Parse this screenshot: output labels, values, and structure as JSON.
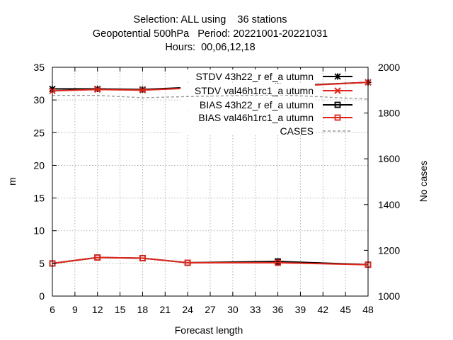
{
  "chart_data": {
    "type": "line",
    "title_lines": [
      "Selection: ALL using    36 stations",
      "Geopotential 500hPa   Period: 20221001-20221031",
      "Hours:  00,06,12,18"
    ],
    "xlabel": "Forecast length",
    "ylabel": "m",
    "y2label": "No cases",
    "xlim": [
      6,
      48
    ],
    "ylim": [
      0,
      35
    ],
    "y2lim": [
      1000,
      2000
    ],
    "xticks": [
      6,
      9,
      12,
      15,
      18,
      21,
      24,
      27,
      30,
      33,
      36,
      39,
      42,
      45,
      48
    ],
    "yticks": [
      0,
      5,
      10,
      15,
      20,
      25,
      30,
      35
    ],
    "y2ticks": [
      1000,
      1200,
      1400,
      1600,
      1800,
      2000
    ],
    "grid": true,
    "legend_position": "top-right",
    "x": [
      6,
      12,
      18,
      24,
      36,
      48
    ],
    "series": [
      {
        "name": "STDV 43h22_ref_autumn",
        "legend_text": "STDV 43h22_r ef_a utumn",
        "axis": "y",
        "color": "#000000",
        "marker": "asterisk",
        "values": [
          31.7,
          31.7,
          31.6,
          31.9,
          32.1,
          32.7
        ]
      },
      {
        "name": "STDV val46h1rc1_autumn",
        "legend_text": "STDV val46h1rc1_a utumn",
        "axis": "y",
        "color": "#e0261b",
        "marker": "x",
        "values": [
          31.4,
          31.6,
          31.5,
          31.8,
          32.0,
          32.7
        ]
      },
      {
        "name": "BIAS 43h22_ref_autumn",
        "legend_text": "BIAS 43h22_r ef_a utumn",
        "axis": "y",
        "color": "#000000",
        "marker": "square",
        "values": [
          5.0,
          5.9,
          5.8,
          5.1,
          5.3,
          4.8
        ]
      },
      {
        "name": "BIAS val46h1rc1_autumn",
        "legend_text": "BIAS val46h1rc1_a utumn",
        "axis": "y",
        "color": "#e0261b",
        "marker": "square",
        "values": [
          5.0,
          5.9,
          5.8,
          5.1,
          5.1,
          4.8
        ]
      },
      {
        "name": "CASES",
        "legend_text": "CASES",
        "axis": "y2",
        "color": "#999999",
        "marker": "none",
        "dashed": true,
        "values": [
          1877,
          1877,
          1867,
          1872,
          1880,
          1861
        ]
      }
    ]
  }
}
